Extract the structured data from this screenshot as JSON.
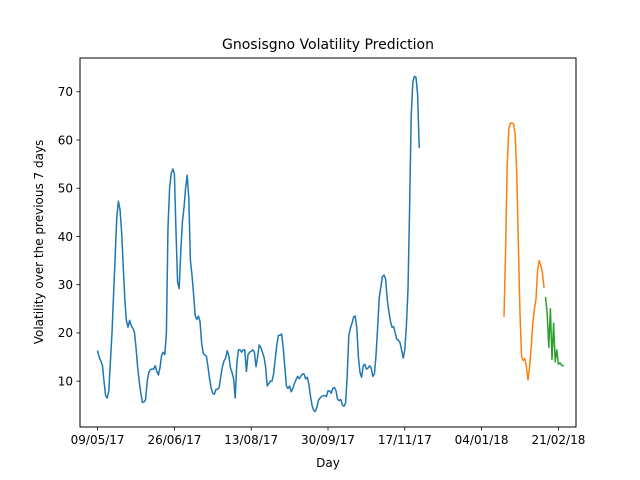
{
  "chart_data": {
    "type": "line",
    "title": "Gnosisgno Volatility Prediction",
    "xlabel": "Day",
    "ylabel": "Volatility over the previous 7 days",
    "xlim": [
      "2017-04-28",
      "2018-03-04"
    ],
    "ylim": [
      0.5,
      77
    ],
    "x_ticks": [
      {
        "date": "2017-05-09",
        "label": "09/05/17"
      },
      {
        "date": "2017-06-26",
        "label": "26/06/17"
      },
      {
        "date": "2017-08-13",
        "label": "13/08/17"
      },
      {
        "date": "2017-09-30",
        "label": "30/09/17"
      },
      {
        "date": "2017-11-17",
        "label": "17/11/17"
      },
      {
        "date": "2018-01-04",
        "label": "04/01/18"
      },
      {
        "date": "2018-02-21",
        "label": "21/02/18"
      }
    ],
    "y_ticks": [
      10,
      20,
      30,
      40,
      50,
      60,
      70
    ],
    "grid": false,
    "series": [
      {
        "color": "#1f77b4",
        "start_date": "2017-05-09",
        "values": [
          16.2,
          15,
          14.2,
          13.3,
          10,
          7,
          6.5,
          8,
          14,
          20,
          28,
          36,
          44,
          47.3,
          45.6,
          41,
          34,
          27,
          22.6,
          21.2,
          22.6,
          21.5,
          21,
          20.2,
          17,
          13,
          10,
          7.5,
          5.6,
          5.7,
          6.2,
          10,
          11.8,
          12.4,
          12.5,
          12.5,
          13.2,
          12,
          11.3,
          12.8,
          15.4,
          16,
          15.5,
          20,
          42,
          50,
          53,
          54,
          53,
          41,
          30.5,
          29.2,
          37,
          43,
          46,
          50,
          52.7,
          48,
          35,
          32,
          28,
          23.5,
          22.8,
          23.5,
          22.4,
          18,
          15.8,
          15.4,
          15.2,
          13,
          10.5,
          8.5,
          7.5,
          7.3,
          8.3,
          8.3,
          8.7,
          11,
          13,
          14.2,
          14.8,
          16.3,
          15.3,
          12.8,
          11.8,
          10.5,
          6.5,
          13.5,
          16.5,
          16.5,
          16,
          16.5,
          16.5,
          12,
          15.5,
          16,
          16.2,
          16.5,
          16,
          13,
          15,
          17.5,
          17,
          16,
          15,
          13,
          9,
          9.5,
          10,
          10,
          11.5,
          14.5,
          17.5,
          19.5,
          19.5,
          19.8,
          17,
          13,
          9,
          8.5,
          9,
          7.8,
          8.5,
          9.5,
          10.3,
          11,
          10.5,
          11,
          11.5,
          11.5,
          10.5,
          10.8,
          9.5,
          7,
          5,
          4,
          3.7,
          4.5,
          6,
          6.5,
          6.8,
          7,
          7,
          6.8,
          8,
          8,
          7.5,
          8.5,
          8.7,
          8,
          6.2,
          6,
          6.2,
          5,
          4.8,
          5.5,
          11,
          19.5,
          21,
          22,
          23.3,
          23.5,
          21,
          15,
          11.8,
          10.8,
          13.2,
          13.5,
          12.5,
          12.7,
          13.2,
          12.7,
          11,
          11.5,
          15.3,
          21,
          27.2,
          29.5,
          31.7,
          32,
          31.2,
          27,
          24.5,
          22.5,
          21.2,
          21.3,
          20,
          18.7,
          18.5,
          18,
          16.5,
          14.8,
          16.5,
          21.5,
          29,
          46,
          65,
          72,
          73.2,
          73,
          69.5,
          58.5
        ]
      },
      {
        "color": "#ff7f0e",
        "start_date": "2018-01-18",
        "values": [
          23.5,
          37,
          55,
          62.3,
          63.5,
          63.5,
          63.3,
          61,
          53,
          38,
          24,
          15,
          14.3,
          14.7,
          13,
          10.3,
          13,
          17,
          22,
          25,
          27,
          33,
          35,
          34,
          32.5,
          29.5
        ]
      },
      {
        "color": "#2ca02c",
        "start_date": "2018-02-13",
        "values": [
          27.3,
          24,
          17,
          25,
          14.5,
          22,
          14,
          16.5,
          13.5,
          13.8,
          13.3,
          13.2
        ]
      }
    ]
  }
}
